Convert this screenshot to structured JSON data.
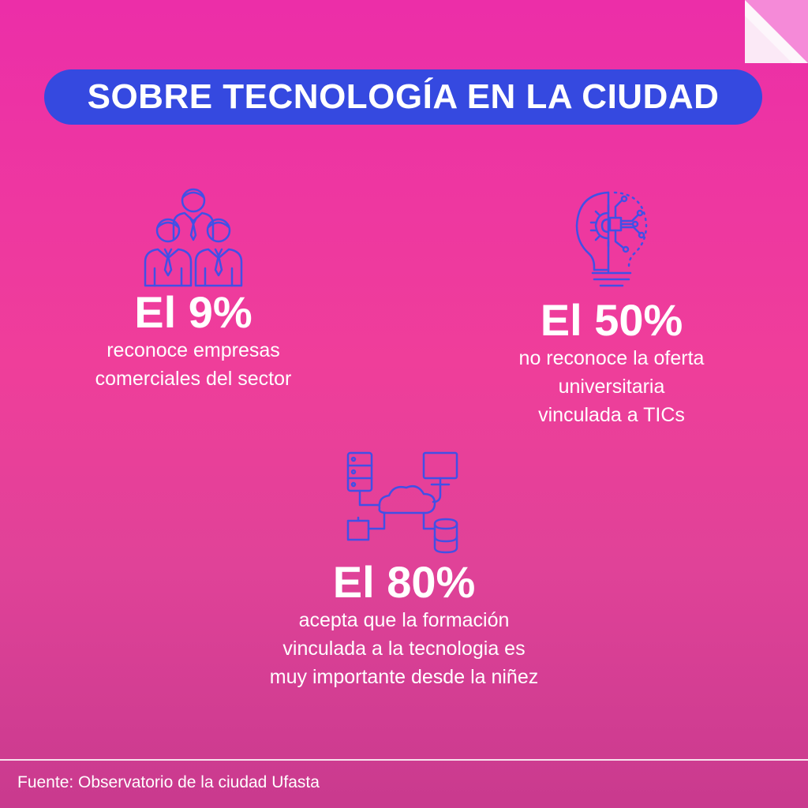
{
  "colors": {
    "background_top": "#ec2ea8",
    "background_bottom": "#c93a8e",
    "title_pill": "#3549e0",
    "icon_stroke": "#4150e6",
    "text": "#ffffff"
  },
  "header": {
    "title": "SOBRE TECNOLOGÍA EN LA CIUDAD"
  },
  "stats": [
    {
      "icon": "business-team-icon",
      "value": "El 9%",
      "lines": [
        "reconoce empresas",
        "comerciales del sector"
      ]
    },
    {
      "icon": "tech-lightbulb-gear-icon",
      "value": "El 50%",
      "lines": [
        "no reconoce la oferta",
        "universitaria",
        "vinculada a TICs"
      ]
    },
    {
      "icon": "cloud-network-icon",
      "value": "El 80%",
      "lines": [
        "acepta que la formación",
        "vinculada a la tecnologia es",
        "muy importante desde la niñez"
      ]
    }
  ],
  "footer": {
    "source": "Fuente: Observatorio de la ciudad Ufasta"
  }
}
